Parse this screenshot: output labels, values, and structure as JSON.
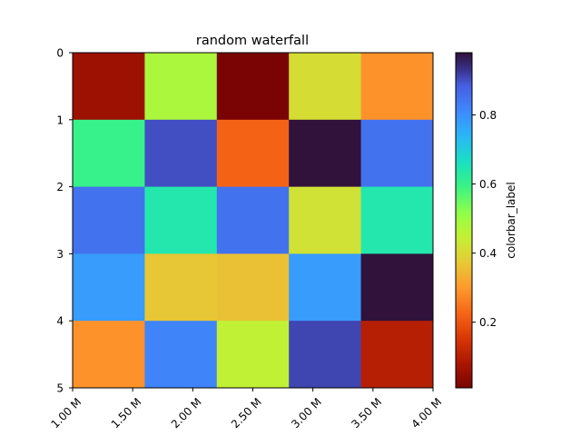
{
  "chart_data": {
    "type": "heatmap",
    "title": "random waterfall",
    "xlabel": "",
    "ylabel": "",
    "colorbar_label": "colorbar_label",
    "colormap": "turbo",
    "x_tick_labels": [
      "1.00 M",
      "1.50 M",
      "2.00 M",
      "2.50 M",
      "3.00 M",
      "3.50 M",
      "4.00 M"
    ],
    "y_tick_labels": [
      "0",
      "1",
      "2",
      "3",
      "4",
      "5"
    ],
    "colorbar_ticks": [
      0.2,
      0.4,
      0.6,
      0.8
    ],
    "colorbar_tick_labels": [
      "0.2",
      "0.4",
      "0.6",
      "0.8"
    ],
    "value_range": [
      0.01,
      0.98
    ],
    "values": [
      [
        0.06,
        0.48,
        0.01,
        0.41,
        0.29
      ],
      [
        0.6,
        0.9,
        0.22,
        0.98,
        0.85
      ],
      [
        0.85,
        0.64,
        0.85,
        0.42,
        0.64
      ],
      [
        0.78,
        0.37,
        0.36,
        0.78,
        0.98
      ],
      [
        0.29,
        0.82,
        0.45,
        0.91,
        0.1
      ]
    ]
  }
}
